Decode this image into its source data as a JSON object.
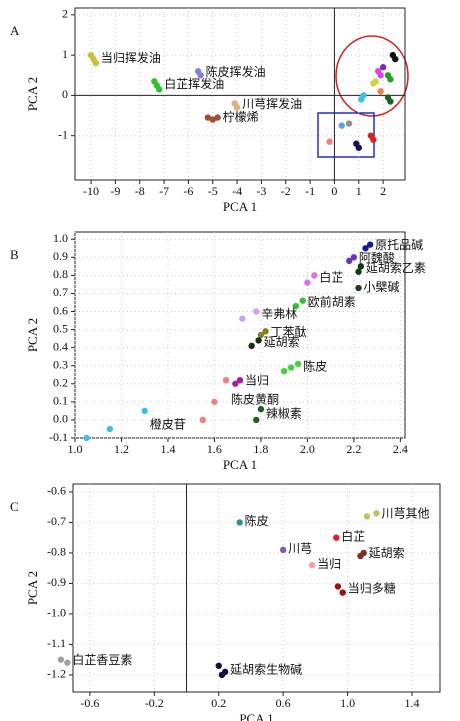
{
  "chart_data": [
    {
      "type": "scatter",
      "label": "A",
      "xlabel": "PCA 1",
      "ylabel": "PCA 2",
      "xlim": [
        -10.66,
        2.9
      ],
      "ylim": [
        -2.1,
        2.17
      ],
      "xticks": [
        -10,
        -9,
        -8,
        -7,
        -6,
        -5,
        -4,
        -3,
        -2,
        -1,
        0,
        1,
        2
      ],
      "yticks": [
        -1,
        0,
        1,
        2
      ],
      "zero_lines": [
        "x",
        "y"
      ],
      "series": [
        {
          "name": "当归挥发油",
          "color": "#c8c040",
          "x": [
            -10,
            -9.9,
            -9.8
          ],
          "y": [
            1.0,
            0.9,
            0.8
          ]
        },
        {
          "name": "陈皮挥发油",
          "color": "#8080e0",
          "x": [
            -5.6,
            -5.5
          ],
          "y": [
            0.6,
            0.5
          ]
        },
        {
          "name": "白芷挥发油",
          "color": "#30c030",
          "x": [
            -7.4,
            -7.3,
            -7.2
          ],
          "y": [
            0.35,
            0.25,
            0.15
          ]
        },
        {
          "name": "川芎挥发油",
          "color": "#e0b080",
          "x": [
            -4.1,
            -4.0
          ],
          "y": [
            -0.2,
            -0.3
          ]
        },
        {
          "name": "柠檬烯",
          "color": "#a05030",
          "x": [
            -5.2,
            -5.0,
            -4.8
          ],
          "y": [
            -0.55,
            -0.6,
            -0.55
          ]
        },
        {
          "color": "#101010",
          "x": [
            2.4,
            2.5
          ],
          "y": [
            1.0,
            0.9
          ]
        },
        {
          "color": "#20a020",
          "x": [
            2.2,
            2.3
          ],
          "y": [
            0.5,
            0.4
          ]
        },
        {
          "color": "#e040e0",
          "x": [
            1.8,
            1.9
          ],
          "y": [
            0.6,
            0.5
          ]
        },
        {
          "color": "#7030c0",
          "x": [
            2.0
          ],
          "y": [
            0.7
          ]
        },
        {
          "color": "#d0d040",
          "x": [
            1.6,
            1.7
          ],
          "y": [
            0.3,
            0.35
          ]
        },
        {
          "color": "#40c0e0",
          "x": [
            1.1,
            1.2
          ],
          "y": [
            -0.1,
            0.0
          ]
        },
        {
          "color": "#206020",
          "x": [
            2.2,
            2.3
          ],
          "y": [
            -0.05,
            -0.15
          ]
        },
        {
          "color": "#f08040",
          "x": [
            1.9
          ],
          "y": [
            0.1
          ]
        },
        {
          "color": "#101050",
          "x": [
            0.9,
            1.0
          ],
          "y": [
            -1.2,
            -1.3
          ]
        },
        {
          "color": "#e02020",
          "x": [
            1.5,
            1.6
          ],
          "y": [
            -1.0,
            -1.1
          ]
        },
        {
          "color": "#909090",
          "x": [
            0.6
          ],
          "y": [
            -0.7
          ]
        },
        {
          "color": "#f08080",
          "x": [
            -0.2
          ],
          "y": [
            -1.15
          ]
        },
        {
          "color": "#60a0e0",
          "x": [
            0.3
          ],
          "y": [
            -0.75
          ]
        }
      ]
    },
    {
      "type": "scatter",
      "label": "B",
      "xlabel": "PCA 1",
      "ylabel": "PCA 2",
      "xlim": [
        1.0,
        2.42
      ],
      "ylim": [
        -0.1,
        1.04
      ],
      "xticks": [
        {
          "value": 1,
          "label": "1.0"
        },
        1.2,
        1.4,
        1.6,
        1.8,
        {
          "value": 2,
          "label": "2.0"
        },
        2.2,
        2.4
      ],
      "yticks": [
        -0.1,
        {
          "value": 0,
          "label": "0.0"
        },
        0.1,
        0.2,
        0.3,
        0.4,
        0.5,
        0.6,
        0.7,
        0.8,
        0.9,
        {
          "value": 1,
          "label": "1.0"
        }
      ],
      "series": [
        {
          "name": "原托品碱",
          "color": "#1a1a90",
          "x": [
            2.25,
            2.27
          ],
          "y": [
            0.95,
            0.97
          ]
        },
        {
          "name": "阿魏酸",
          "color": "#7030c0",
          "x": [
            2.18,
            2.2
          ],
          "y": [
            0.88,
            0.9
          ]
        },
        {
          "name": "延胡索乙素",
          "color": "#0b3b0b",
          "x": [
            2.22,
            2.23
          ],
          "y": [
            0.82,
            0.85
          ]
        },
        {
          "name": "白芷",
          "color": "#e070e0",
          "x": [
            2.0,
            2.03
          ],
          "y": [
            0.76,
            0.8
          ]
        },
        {
          "name": "小檗碱",
          "color": "#204020",
          "x": [
            2.22
          ],
          "y": [
            0.73
          ]
        },
        {
          "name": "欧前胡素",
          "color": "#30c030",
          "x": [
            1.95,
            1.98
          ],
          "y": [
            0.63,
            0.66
          ]
        },
        {
          "name": "辛弗林",
          "color": "#d0a0f0",
          "x": [
            1.72,
            1.78
          ],
          "y": [
            0.56,
            0.6
          ]
        },
        {
          "name": "丁苯酞",
          "color": "#808020",
          "x": [
            1.8,
            1.82
          ],
          "y": [
            0.47,
            0.49
          ]
        },
        {
          "name": "延胡索",
          "color": "#103010",
          "x": [
            1.76,
            1.79
          ],
          "y": [
            0.41,
            0.44
          ]
        },
        {
          "name": "陈皮",
          "color": "#40d040",
          "x": [
            1.9,
            1.93,
            1.96
          ],
          "y": [
            0.27,
            0.29,
            0.31
          ]
        },
        {
          "name": "当归",
          "color": "#a020a0",
          "x": [
            1.69,
            1.71
          ],
          "y": [
            0.2,
            0.22
          ]
        },
        {
          "name": "陈皮黄酮",
          "color": "#f08080",
          "x": [
            1.55,
            1.6,
            1.65
          ],
          "y": [
            0.0,
            0.1,
            0.22
          ]
        },
        {
          "name": "辣椒素",
          "color": "#206020",
          "x": [
            1.78,
            1.8
          ],
          "y": [
            0.0,
            0.06
          ]
        },
        {
          "name": "橙皮苷",
          "color": "#40c0e0",
          "x": [
            1.05,
            1.15,
            1.3
          ],
          "y": [
            -0.1,
            -0.05,
            0.05
          ]
        }
      ]
    },
    {
      "type": "scatter",
      "label": "C",
      "xlabel": "PCA 1",
      "ylabel": "PCA 2",
      "xlim": [
        -0.705,
        1.574
      ],
      "ylim": [
        -1.256,
        -0.574
      ],
      "xticks": [
        -0.6,
        -0.2,
        0.2,
        0.6,
        {
          "value": 1,
          "label": "1.0"
        },
        1.4
      ],
      "yticks": [
        -1.2,
        -1.1,
        {
          "value": -1,
          "label": "-1.0"
        },
        -0.9,
        -0.8,
        -0.7,
        -0.6
      ],
      "zero_lines": [
        "x"
      ],
      "series": [
        {
          "name": "川芎其他",
          "color": "#c0c060",
          "x": [
            1.12,
            1.18
          ],
          "y": [
            -0.68,
            -0.67
          ]
        },
        {
          "name": "陈皮",
          "color": "#309090",
          "x": [
            0.33
          ],
          "y": [
            -0.7
          ]
        },
        {
          "name": "白芷",
          "color": "#e02020",
          "x": [
            0.93
          ],
          "y": [
            -0.75
          ]
        },
        {
          "name": "川芎",
          "color": "#8060a0",
          "x": [
            0.6
          ],
          "y": [
            -0.79
          ]
        },
        {
          "name": "延胡索",
          "color": "#803020",
          "x": [
            1.08,
            1.1
          ],
          "y": [
            -0.81,
            -0.8
          ]
        },
        {
          "name": "当归",
          "color": "#f0a0a0",
          "x": [
            0.78
          ],
          "y": [
            -0.84
          ]
        },
        {
          "name": "当归多糖",
          "color": "#a01010",
          "x": [
            0.94,
            0.97
          ],
          "y": [
            -0.91,
            -0.93
          ]
        },
        {
          "name": "白芷香豆素",
          "color": "#a0a0a0",
          "x": [
            -0.78,
            -0.74
          ],
          "y": [
            -1.15,
            -1.16
          ]
        },
        {
          "name": "延胡索生物碱",
          "color": "#101040",
          "x": [
            0.2,
            0.22,
            0.24
          ],
          "y": [
            -1.17,
            -1.2,
            -1.19
          ]
        }
      ]
    }
  ]
}
